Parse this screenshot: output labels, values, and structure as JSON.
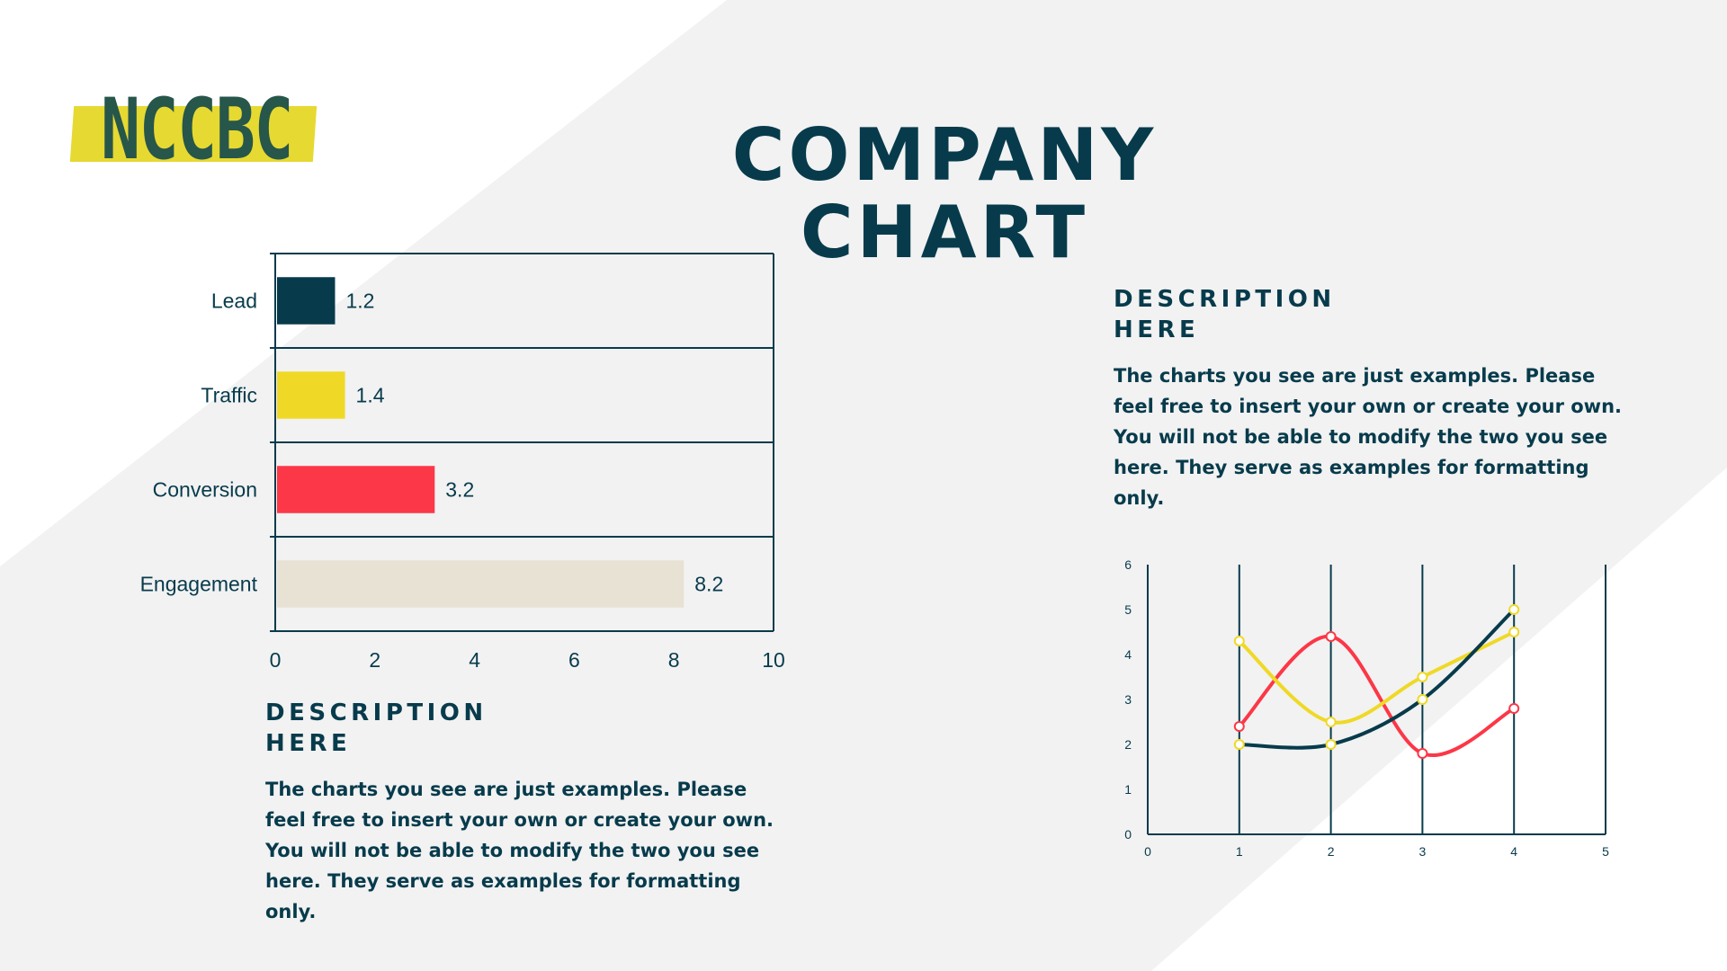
{
  "logo": {
    "text": "NCCBC"
  },
  "page_title_line1": "COMPANY",
  "page_title_line2": "CHART",
  "description_left": {
    "heading_line1": "DESCRIPTION",
    "heading_line2": "HERE",
    "body": "The charts you see are just examples. Please feel free to insert your own or create your own. You will not be able to modify the two you see here. They serve as examples for formatting only."
  },
  "description_right": {
    "heading_line1": "DESCRIPTION",
    "heading_line2": "HERE",
    "body": "The charts you see are just examples. Please feel free to insert your own or create your own. You will not be able to modify the two you see here. They serve as examples for formatting only."
  },
  "colors": {
    "navy": "#073B4C",
    "yellow": "#EFD926",
    "red": "#FC3747",
    "beige": "#E8E2D4",
    "logo_green": "#27564A",
    "logo_band": "#E6D931",
    "background_band": "#F2F2F2"
  },
  "chart_data": [
    {
      "type": "bar",
      "orientation": "horizontal",
      "categories": [
        "Lead",
        "Traffic",
        "Conversion",
        "Engagement"
      ],
      "values": [
        1.2,
        1.4,
        3.2,
        8.2
      ],
      "value_labels": [
        "1.2",
        "1.4",
        "3.2",
        "8.2"
      ],
      "bar_colors": [
        "#073B4C",
        "#EFD926",
        "#FC3747",
        "#E8E2D4"
      ],
      "xlim": [
        0,
        10
      ],
      "x_ticks": [
        "0",
        "2",
        "4",
        "6",
        "8",
        "10"
      ],
      "grid": true,
      "legend": "none"
    },
    {
      "type": "line",
      "smooth": true,
      "x": [
        1,
        2,
        3,
        4
      ],
      "series": [
        {
          "color": "#FC3747",
          "values": [
            2.4,
            4.4,
            1.8,
            2.8
          ]
        },
        {
          "color": "#EFD926",
          "values": [
            4.3,
            2.5,
            3.5,
            4.5
          ]
        },
        {
          "color": "#073B4C",
          "values": [
            2.0,
            2.0,
            3.0,
            5.0
          ]
        }
      ],
      "xlim": [
        0,
        5
      ],
      "ylim": [
        0,
        6
      ],
      "x_ticks": [
        "0",
        "1",
        "2",
        "3",
        "4",
        "5"
      ],
      "y_ticks": [
        "0",
        "1",
        "2",
        "3",
        "4",
        "5",
        "6"
      ],
      "grid": true,
      "legend": "none"
    }
  ]
}
